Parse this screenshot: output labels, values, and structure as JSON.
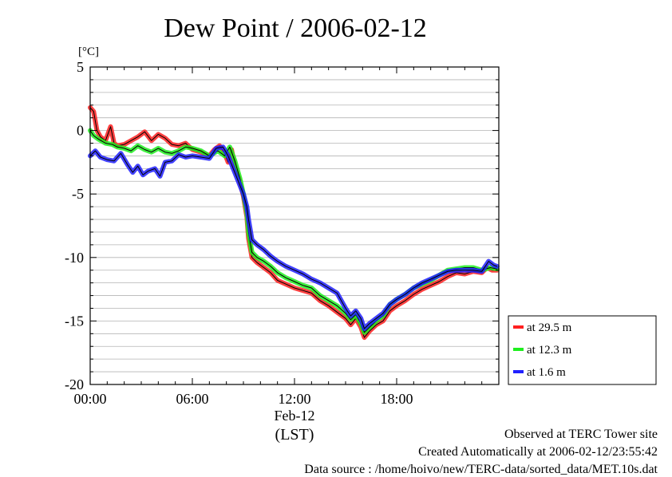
{
  "chart_data": {
    "type": "line",
    "title": "Dew Point / 2006-02-12",
    "y_unit": "[°C]",
    "ylim": [
      -20,
      5
    ],
    "y_ticks": [
      5,
      0,
      -5,
      -10,
      -15,
      -20
    ],
    "y_tick_labels": [
      "5",
      "0",
      "-5",
      "-10",
      "-15",
      "-20"
    ],
    "xlim": [
      0,
      24
    ],
    "x_ticks": [
      0,
      6,
      12,
      18
    ],
    "x_tick_labels": [
      "00:00",
      "06:00",
      "12:00",
      "18:00"
    ],
    "x_date_label": "Feb-12",
    "x_axis_label": "(LST)",
    "grid": "horizontal",
    "legend_position": "right-bottom",
    "colors": {
      "red": "#ff2020",
      "green": "#1fee1f",
      "blue": "#2020ff",
      "dark": "#000000"
    },
    "series": [
      {
        "name": "at 29.5 m",
        "color": "#ff2020",
        "x": [
          0,
          0.2,
          0.4,
          0.6,
          0.9,
          1.2,
          1.4,
          1.6,
          2.0,
          2.4,
          2.8,
          3.2,
          3.6,
          4.0,
          4.4,
          4.8,
          5.2,
          5.6,
          6.0,
          6.5,
          7.0,
          7.3,
          7.6,
          7.9,
          8.1,
          8.3,
          8.5,
          8.8,
          9.0,
          9.2,
          9.3,
          9.5,
          9.8,
          10.2,
          10.6,
          11.0,
          11.5,
          12.0,
          12.5,
          13.0,
          13.5,
          14.0,
          14.5,
          15.0,
          15.3,
          15.6,
          15.9,
          16.1,
          16.4,
          16.8,
          17.2,
          17.6,
          18.0,
          18.5,
          19.0,
          19.5,
          20.0,
          20.5,
          21.0,
          21.5,
          22.0,
          22.5,
          23.0,
          23.3,
          23.6,
          23.9
        ],
        "y": [
          1.8,
          1.5,
          0.0,
          -0.5,
          -0.8,
          0.3,
          -1.0,
          -1.2,
          -1.1,
          -0.8,
          -0.5,
          -0.1,
          -0.8,
          -0.3,
          -0.6,
          -1.1,
          -1.2,
          -1.0,
          -1.5,
          -1.7,
          -2.0,
          -1.5,
          -1.2,
          -1.8,
          -2.5,
          -1.5,
          -2.8,
          -4.0,
          -5.2,
          -6.8,
          -8.5,
          -10.0,
          -10.4,
          -10.8,
          -11.2,
          -11.8,
          -12.1,
          -12.4,
          -12.6,
          -12.8,
          -13.4,
          -13.8,
          -14.3,
          -14.8,
          -15.3,
          -14.8,
          -15.5,
          -16.3,
          -15.8,
          -15.3,
          -15.0,
          -14.2,
          -13.8,
          -13.4,
          -12.9,
          -12.5,
          -12.2,
          -11.9,
          -11.5,
          -11.2,
          -11.3,
          -11.1,
          -11.2,
          -10.8,
          -11.0,
          -11.0
        ]
      },
      {
        "name": "at 12.3 m",
        "color": "#1fee1f",
        "x": [
          0,
          0.2,
          0.5,
          0.9,
          1.3,
          1.6,
          2.0,
          2.4,
          2.8,
          3.2,
          3.6,
          4.0,
          4.4,
          4.8,
          5.2,
          5.6,
          6.0,
          6.5,
          7.0,
          7.5,
          7.9,
          8.2,
          8.5,
          8.8,
          9.0,
          9.2,
          9.3,
          9.5,
          9.8,
          10.2,
          10.6,
          11.0,
          11.5,
          12.0,
          12.5,
          13.0,
          13.5,
          14.0,
          14.5,
          15.0,
          15.3,
          15.6,
          15.9,
          16.1,
          16.4,
          16.8,
          17.2,
          17.6,
          18.0,
          18.5,
          19.0,
          19.5,
          20.0,
          20.5,
          21.0,
          21.5,
          22.0,
          22.5,
          23.0,
          23.5,
          23.9
        ],
        "y": [
          0.0,
          -0.4,
          -0.7,
          -1.0,
          -1.1,
          -1.3,
          -1.4,
          -1.6,
          -1.2,
          -1.5,
          -1.7,
          -1.4,
          -1.7,
          -1.8,
          -1.6,
          -1.3,
          -1.4,
          -1.6,
          -2.0,
          -1.6,
          -2.0,
          -1.3,
          -2.4,
          -3.8,
          -5.0,
          -6.5,
          -8.0,
          -9.6,
          -10.0,
          -10.3,
          -10.7,
          -11.2,
          -11.6,
          -11.9,
          -12.2,
          -12.4,
          -13.0,
          -13.4,
          -13.8,
          -14.4,
          -14.9,
          -14.5,
          -15.2,
          -15.9,
          -15.5,
          -15.0,
          -14.6,
          -13.7,
          -13.3,
          -12.9,
          -12.4,
          -12.1,
          -11.8,
          -11.4,
          -11.0,
          -10.9,
          -10.8,
          -10.8,
          -11.0,
          -10.8,
          -10.9
        ]
      },
      {
        "name": "at 1.6 m",
        "color": "#2020ff",
        "x": [
          0,
          0.3,
          0.6,
          1.0,
          1.4,
          1.8,
          2.2,
          2.5,
          2.8,
          3.1,
          3.4,
          3.8,
          4.1,
          4.4,
          4.8,
          5.2,
          5.6,
          6.0,
          6.5,
          7.0,
          7.4,
          7.8,
          8.1,
          8.4,
          8.7,
          9.0,
          9.2,
          9.3,
          9.5,
          9.8,
          10.2,
          10.6,
          11.0,
          11.5,
          12.0,
          12.5,
          13.0,
          13.5,
          14.0,
          14.5,
          15.0,
          15.3,
          15.6,
          15.9,
          16.1,
          16.4,
          16.8,
          17.2,
          17.6,
          18.0,
          18.5,
          19.0,
          19.5,
          20.0,
          20.5,
          21.0,
          21.5,
          22.0,
          22.5,
          23.0,
          23.4,
          23.7,
          23.9
        ],
        "y": [
          -2.0,
          -1.6,
          -2.1,
          -2.3,
          -2.4,
          -1.8,
          -2.7,
          -3.3,
          -2.8,
          -3.5,
          -3.2,
          -3.0,
          -3.6,
          -2.5,
          -2.4,
          -1.9,
          -2.1,
          -2.0,
          -2.1,
          -2.2,
          -1.4,
          -1.3,
          -2.0,
          -3.0,
          -4.0,
          -5.0,
          -6.0,
          -7.0,
          -8.6,
          -9.0,
          -9.4,
          -9.9,
          -10.3,
          -10.7,
          -11.0,
          -11.3,
          -11.7,
          -12.0,
          -12.4,
          -12.8,
          -14.0,
          -14.6,
          -14.2,
          -14.8,
          -15.6,
          -15.2,
          -14.8,
          -14.4,
          -13.7,
          -13.3,
          -12.9,
          -12.4,
          -12.0,
          -11.7,
          -11.4,
          -11.1,
          -11.0,
          -11.0,
          -11.0,
          -11.1,
          -10.3,
          -10.6,
          -10.7
        ]
      }
    ]
  },
  "footer": {
    "line1": "Observed at TERC Tower site",
    "line2": "Created Automatically at 2006-02-12/23:55:42",
    "line3": "Data source : /home/hoivo/new/TERC-data/sorted_data/MET.10s.dat"
  }
}
